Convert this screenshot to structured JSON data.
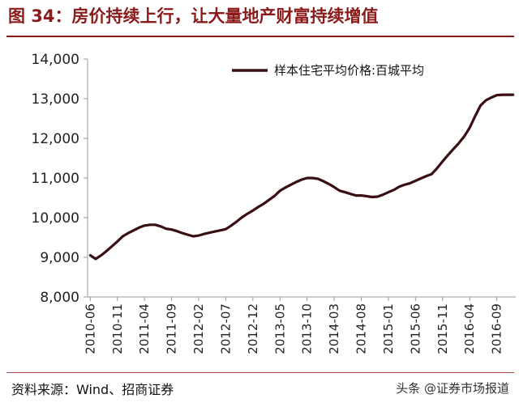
{
  "figure_title": "图 34：房价持续上行，让大量地产财富持续增值",
  "source": "资料来源：Wind、招商证券",
  "watermark": "头条 @证券市场报道",
  "colors": {
    "title": "#8b1a1a",
    "line": "#3a0f14",
    "axis": "#999999"
  },
  "chart_data": {
    "type": "line",
    "title": "",
    "xlabel": "",
    "ylabel": "",
    "ylim": [
      8000,
      14000
    ],
    "yticks": [
      8000,
      9000,
      10000,
      11000,
      12000,
      13000,
      14000
    ],
    "ytick_labels": [
      "8,000",
      "9,000",
      "10,000",
      "11,000",
      "12,000",
      "13,000",
      "14,000"
    ],
    "xtick_labels": [
      "2010-06",
      "2010-11",
      "2011-04",
      "2011-09",
      "2012-02",
      "2012-07",
      "2012-12",
      "2013-05",
      "2013-10",
      "2014-03",
      "2014-08",
      "2015-01",
      "2015-06",
      "2015-11",
      "2016-04",
      "2016-09"
    ],
    "x": [
      "2010-06",
      "2010-07",
      "2010-08",
      "2010-09",
      "2010-10",
      "2010-11",
      "2010-12",
      "2011-01",
      "2011-02",
      "2011-03",
      "2011-04",
      "2011-05",
      "2011-06",
      "2011-07",
      "2011-08",
      "2011-09",
      "2011-10",
      "2011-11",
      "2011-12",
      "2012-01",
      "2012-02",
      "2012-03",
      "2012-04",
      "2012-05",
      "2012-06",
      "2012-07",
      "2012-08",
      "2012-09",
      "2012-10",
      "2012-11",
      "2012-12",
      "2013-01",
      "2013-02",
      "2013-03",
      "2013-04",
      "2013-05",
      "2013-06",
      "2013-07",
      "2013-08",
      "2013-09",
      "2013-10",
      "2013-11",
      "2013-12",
      "2014-01",
      "2014-02",
      "2014-03",
      "2014-04",
      "2014-05",
      "2014-06",
      "2014-07",
      "2014-08",
      "2014-09",
      "2014-10",
      "2014-11",
      "2014-12",
      "2015-01",
      "2015-02",
      "2015-03",
      "2015-04",
      "2015-05",
      "2015-06",
      "2015-07",
      "2015-08",
      "2015-09",
      "2015-10",
      "2015-11",
      "2015-12",
      "2016-01",
      "2016-02",
      "2016-03",
      "2016-04",
      "2016-05",
      "2016-06",
      "2016-07",
      "2016-08",
      "2016-09",
      "2016-10",
      "2016-11",
      "2016-12"
    ],
    "series": [
      {
        "name": "样本住宅平均价格:百城平均",
        "values": [
          9050,
          8960,
          9050,
          9160,
          9280,
          9400,
          9530,
          9610,
          9680,
          9750,
          9800,
          9820,
          9820,
          9780,
          9720,
          9700,
          9660,
          9610,
          9570,
          9530,
          9550,
          9590,
          9620,
          9650,
          9680,
          9710,
          9800,
          9900,
          10010,
          10100,
          10180,
          10270,
          10350,
          10450,
          10550,
          10680,
          10760,
          10830,
          10900,
          10960,
          11000,
          11000,
          10980,
          10920,
          10850,
          10770,
          10680,
          10640,
          10600,
          10560,
          10560,
          10540,
          10520,
          10530,
          10580,
          10640,
          10700,
          10780,
          10830,
          10870,
          10930,
          10990,
          11050,
          11100,
          11250,
          11420,
          11580,
          11730,
          11880,
          12050,
          12270,
          12560,
          12830,
          12960,
          13030,
          13090,
          13100,
          13100,
          13100
        ]
      }
    ],
    "legend": "top-right",
    "grid": false
  }
}
